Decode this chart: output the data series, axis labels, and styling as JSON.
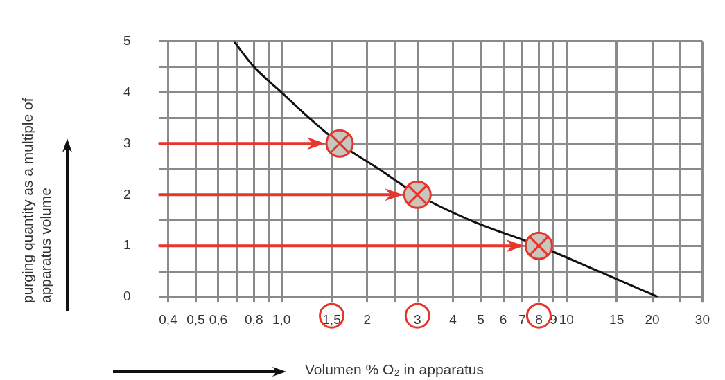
{
  "chart_data": {
    "type": "line",
    "xlabel": "Volumen % O₂ in apparatus",
    "ylabel": "purging quantity as a multiple of apparatus volume",
    "log": "x",
    "xlim": [
      0.37,
      30
    ],
    "xticks": [
      {
        "value": 0.4,
        "label": "0,4"
      },
      {
        "value": 0.5,
        "label": "0,5"
      },
      {
        "value": 0.6,
        "label": "0,6"
      },
      {
        "value": 0.7,
        "label": null
      },
      {
        "value": 0.8,
        "label": "0,8"
      },
      {
        "value": 0.9,
        "label": null
      },
      {
        "value": 1,
        "label": "1,0"
      },
      {
        "value": 1.5,
        "label": "1,5"
      },
      2,
      {
        "value": 2.5,
        "label": null
      },
      3,
      4,
      5,
      6,
      7,
      8,
      9,
      10,
      15,
      20,
      {
        "value": 25,
        "label": null
      },
      30
    ],
    "ylim": [
      0,
      5
    ],
    "yticks": [
      0,
      {
        "value": 0.5,
        "label": null
      },
      1,
      {
        "value": 1.5,
        "label": null
      },
      2,
      {
        "value": 2.5,
        "label": null
      },
      3,
      {
        "value": 3.5,
        "label": null
      },
      4,
      {
        "value": 4.5,
        "label": null
      },
      5
    ],
    "grid": true,
    "legend": false,
    "series": [
      {
        "type": "line",
        "color": "#111111",
        "marker": "none",
        "x": [
          0.68,
          0.8,
          1.0,
          1.25,
          1.6,
          2.2,
          3,
          4.6,
          8,
          13,
          21
        ],
        "values": [
          5,
          4.5,
          4,
          3.5,
          3,
          2.5,
          2,
          1.5,
          1,
          0.5,
          0
        ]
      },
      {
        "type": "scatter",
        "color": "#e8352b",
        "marker": "circle",
        "x": [
          1.6,
          3,
          8
        ],
        "values": [
          3,
          2,
          1
        ]
      }
    ]
  }
}
